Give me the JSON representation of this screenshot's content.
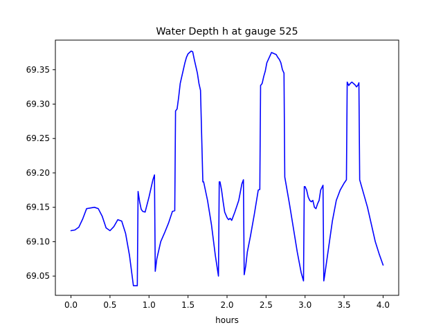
{
  "chart_data": {
    "type": "line",
    "title": "Water Depth h at gauge 525",
    "xlabel": "hours",
    "ylabel": "",
    "xlim": [
      -0.2,
      4.2
    ],
    "ylim": [
      69.022,
      69.393
    ],
    "grid": false,
    "x_ticks": [
      0.0,
      0.5,
      1.0,
      1.5,
      2.0,
      2.5,
      3.0,
      3.5,
      4.0
    ],
    "x_tick_labels": [
      "0.0",
      "0.5",
      "1.0",
      "1.5",
      "2.0",
      "2.5",
      "3.0",
      "3.5",
      "4.0"
    ],
    "y_ticks": [
      69.05,
      69.1,
      69.15,
      69.2,
      69.25,
      69.3,
      69.35
    ],
    "y_tick_labels": [
      "69.05",
      "69.10",
      "69.15",
      "69.20",
      "69.25",
      "69.30",
      "69.35"
    ],
    "series": [
      {
        "color": "#0000ff",
        "x": [
          0.0,
          0.05,
          0.1,
          0.15,
          0.2,
          0.25,
          0.3,
          0.35,
          0.4,
          0.45,
          0.5,
          0.55,
          0.6,
          0.65,
          0.7,
          0.75,
          0.8,
          0.85,
          0.86,
          0.88,
          0.9,
          0.92,
          0.95,
          1.0,
          1.05,
          1.07,
          1.08,
          1.1,
          1.15,
          1.2,
          1.25,
          1.3,
          1.33,
          1.34,
          1.36,
          1.38,
          1.4,
          1.42,
          1.44,
          1.46,
          1.48,
          1.5,
          1.52,
          1.54,
          1.56,
          1.58,
          1.6,
          1.62,
          1.64,
          1.66,
          1.69,
          1.7,
          1.75,
          1.8,
          1.85,
          1.89,
          1.9,
          1.91,
          1.93,
          1.95,
          1.97,
          2.0,
          2.02,
          2.04,
          2.06,
          2.1,
          2.15,
          2.19,
          2.21,
          2.22,
          2.24,
          2.26,
          2.3,
          2.35,
          2.4,
          2.42,
          2.43,
          2.45,
          2.47,
          2.49,
          2.51,
          2.53,
          2.55,
          2.57,
          2.59,
          2.61,
          2.63,
          2.65,
          2.67,
          2.69,
          2.71,
          2.73,
          2.74,
          2.8,
          2.85,
          2.9,
          2.95,
          2.98,
          2.99,
          3.0,
          3.02,
          3.04,
          3.06,
          3.08,
          3.1,
          3.12,
          3.14,
          3.16,
          3.18,
          3.2,
          3.23,
          3.24,
          3.25,
          3.3,
          3.35,
          3.4,
          3.45,
          3.5,
          3.53,
          3.54,
          3.56,
          3.58,
          3.6,
          3.62,
          3.64,
          3.66,
          3.68,
          3.69,
          3.7,
          3.75,
          3.8,
          3.85,
          3.9,
          3.95,
          4.0
        ],
        "y": [
          69.116,
          69.117,
          69.121,
          69.133,
          69.148,
          69.149,
          69.15,
          69.148,
          69.137,
          69.12,
          69.116,
          69.122,
          69.132,
          69.13,
          69.112,
          69.08,
          69.036,
          69.036,
          69.173,
          69.158,
          69.147,
          69.144,
          69.143,
          69.165,
          69.19,
          69.197,
          69.057,
          69.075,
          69.1,
          69.113,
          69.127,
          69.144,
          69.145,
          69.29,
          69.293,
          69.31,
          69.33,
          69.34,
          69.35,
          69.36,
          69.368,
          69.373,
          69.375,
          69.377,
          69.376,
          69.365,
          69.355,
          69.345,
          69.33,
          69.32,
          69.187,
          69.187,
          69.16,
          69.125,
          69.08,
          69.05,
          69.187,
          69.187,
          69.175,
          69.158,
          69.143,
          69.135,
          69.132,
          69.134,
          69.131,
          69.143,
          69.16,
          69.184,
          69.19,
          69.052,
          69.065,
          69.085,
          69.108,
          69.14,
          69.175,
          69.176,
          69.327,
          69.33,
          69.34,
          69.348,
          69.36,
          69.365,
          69.37,
          69.375,
          69.374,
          69.373,
          69.372,
          69.368,
          69.365,
          69.36,
          69.35,
          69.345,
          69.194,
          69.155,
          69.12,
          69.085,
          69.055,
          69.043,
          69.18,
          69.18,
          69.175,
          69.165,
          69.16,
          69.158,
          69.16,
          69.15,
          69.148,
          69.155,
          69.16,
          69.175,
          69.182,
          69.043,
          69.05,
          69.09,
          69.13,
          69.16,
          69.175,
          69.185,
          69.19,
          69.332,
          69.327,
          69.33,
          69.332,
          69.33,
          69.328,
          69.325,
          69.328,
          69.331,
          69.19,
          69.17,
          69.15,
          69.125,
          69.1,
          69.082,
          69.066
        ]
      }
    ]
  }
}
